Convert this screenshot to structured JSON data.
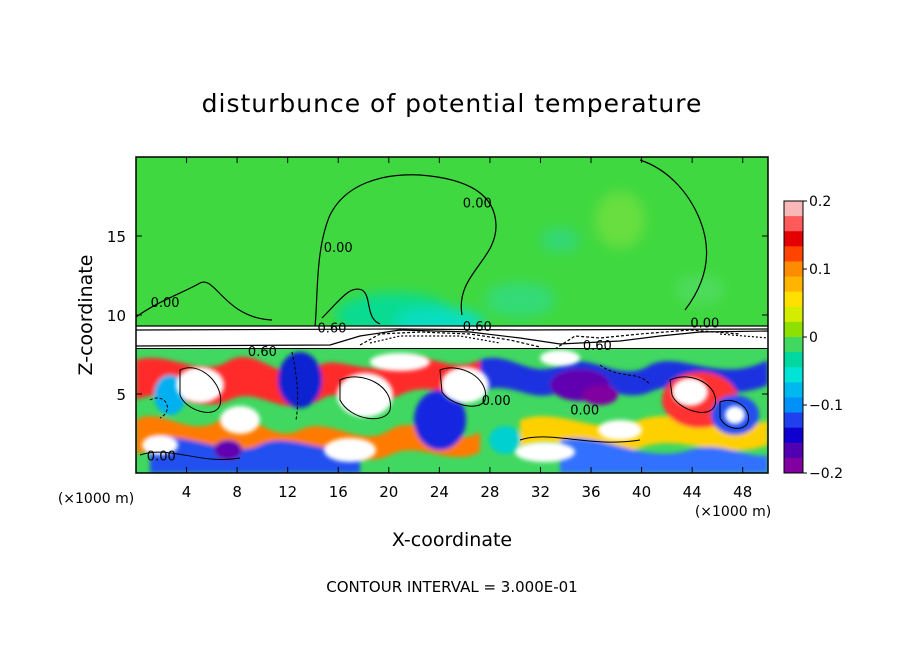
{
  "chart_data": {
    "type": "heatmap",
    "title": "disturbunce of potential temperature",
    "xlabel": "X-coordinate",
    "ylabel": "Z-coordinate",
    "x_unit_label_left": "(×1000 m)",
    "x_unit_label_right": "(×1000 m)",
    "xlim": [
      0,
      50
    ],
    "ylim": [
      0,
      20
    ],
    "x_ticks": [
      4,
      8,
      12,
      16,
      20,
      24,
      28,
      32,
      36,
      40,
      44,
      48
    ],
    "x_tick_labels": [
      "4",
      "8",
      "12",
      "16",
      "20",
      "24",
      "28",
      "32",
      "36",
      "40",
      "44",
      "48"
    ],
    "y_ticks": [
      5,
      10,
      15
    ],
    "y_tick_labels": [
      "5",
      "10",
      "15"
    ],
    "footer": "CONTOUR INTERVAL = 3.000E-01",
    "colorbar": {
      "range": [
        -0.2,
        0.2
      ],
      "tick_values": [
        0.2,
        0.1,
        0,
        -0.1,
        -0.2
      ],
      "tick_labels": [
        "0.2",
        "0.1",
        "0",
        "−0.1",
        "−0.2"
      ],
      "colors": [
        "#f9b8b8",
        "#ff5a5a",
        "#e40000",
        "#ff4400",
        "#ff8c00",
        "#ffb400",
        "#ffe000",
        "#d4ec00",
        "#8ee000",
        "#40d860",
        "#00d8a0",
        "#00e4d8",
        "#00b8f0",
        "#0090f8",
        "#2040f0",
        "#1000d0",
        "#5000b0",
        "#8000a0"
      ]
    },
    "contour_labels": [
      {
        "text": "0.00",
        "x": 2.3,
        "z": 10.5
      },
      {
        "text": "0.00",
        "x": 16.0,
        "z": 14.0
      },
      {
        "text": "0.00",
        "x": 27.0,
        "z": 16.8
      },
      {
        "text": "0.60",
        "x": 15.5,
        "z": 8.9
      },
      {
        "text": "0.60",
        "x": 27.0,
        "z": 9.0
      },
      {
        "text": "0.00",
        "x": 45.0,
        "z": 9.2
      },
      {
        "text": "0.60",
        "x": 10.0,
        "z": 7.4
      },
      {
        "text": "0.60",
        "x": 36.5,
        "z": 7.8
      },
      {
        "text": "0.00",
        "x": 28.5,
        "z": 4.3
      },
      {
        "text": "0.00",
        "x": 35.5,
        "z": 3.7
      },
      {
        "text": "0.00",
        "x": 2.0,
        "z": 0.8
      }
    ]
  }
}
